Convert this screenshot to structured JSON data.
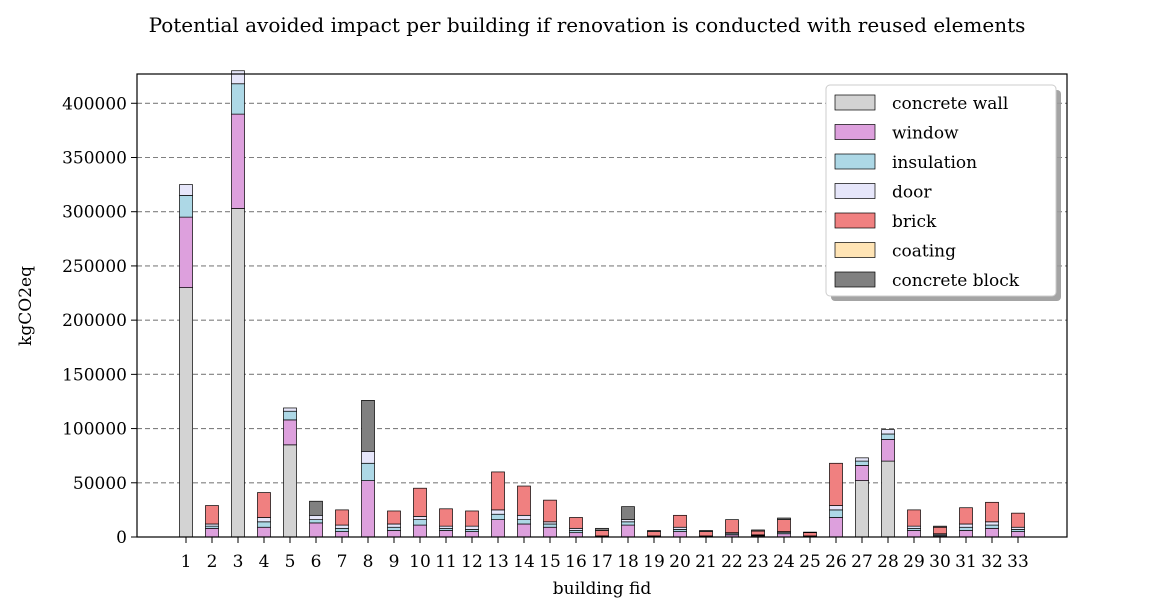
{
  "chart_data": {
    "type": "bar",
    "stacked": true,
    "title": "Potential avoided impact per building if renovation is conducted with reused elements",
    "xlabel": "building fid",
    "ylabel": "kgCO2eq",
    "ylim": [
      0,
      427000
    ],
    "yticks": [
      0,
      50000,
      100000,
      150000,
      200000,
      250000,
      300000,
      350000,
      400000
    ],
    "grid": "y-dashed",
    "legend_position": "top-right",
    "categories": [
      "1",
      "2",
      "3",
      "4",
      "5",
      "6",
      "7",
      "8",
      "9",
      "10",
      "11",
      "12",
      "13",
      "14",
      "15",
      "16",
      "17",
      "18",
      "19",
      "20",
      "21",
      "22",
      "23",
      "24",
      "25",
      "26",
      "27",
      "28",
      "29",
      "30",
      "31",
      "32",
      "33"
    ],
    "series": [
      {
        "name": "concrete wall",
        "color": "#d3d3d3",
        "values": [
          230000,
          0,
          303000,
          0,
          85000,
          0,
          0,
          0,
          0,
          0,
          0,
          0,
          0,
          0,
          0,
          0,
          0,
          0,
          0,
          0,
          0,
          0,
          0,
          0,
          0,
          0,
          52000,
          70000,
          0,
          0,
          0,
          0,
          0
        ]
      },
      {
        "name": "window",
        "color": "#dda0dd",
        "values": [
          65000,
          8000,
          87000,
          9000,
          23000,
          13000,
          5000,
          52000,
          6000,
          11000,
          6000,
          5000,
          16000,
          12000,
          9000,
          4000,
          0,
          11000,
          0,
          5000,
          0,
          2000,
          1000,
          3000,
          0,
          18000,
          14000,
          20000,
          6000,
          1000,
          6000,
          8000,
          5000
        ]
      },
      {
        "name": "insulation",
        "color": "#add8e6",
        "values": [
          20000,
          2000,
          28000,
          5000,
          8000,
          3000,
          3000,
          16000,
          3000,
          5000,
          2000,
          2000,
          5000,
          4000,
          3000,
          2000,
          500,
          3000,
          500,
          2000,
          500,
          1000,
          500,
          1000,
          500,
          7000,
          4000,
          5000,
          2000,
          1000,
          3000,
          3000,
          2000
        ]
      },
      {
        "name": "door",
        "color": "#e6e6fa",
        "values": [
          10000,
          2000,
          12000,
          4000,
          3000,
          4000,
          3000,
          11000,
          3000,
          3000,
          2000,
          3000,
          4000,
          4000,
          2000,
          2000,
          500,
          2000,
          500,
          2000,
          500,
          1000,
          500,
          1000,
          500,
          4000,
          3000,
          4000,
          2000,
          1000,
          3000,
          3000,
          2000
        ]
      },
      {
        "name": "brick",
        "color": "#f08080",
        "values": [
          0,
          17000,
          0,
          23000,
          0,
          0,
          14000,
          0,
          12000,
          26000,
          16000,
          14000,
          35000,
          27000,
          20000,
          10000,
          5000,
          0,
          4000,
          11000,
          4000,
          12000,
          3500,
          11000,
          3000,
          39000,
          0,
          0,
          15000,
          6000,
          15000,
          18000,
          13000
        ]
      },
      {
        "name": "coating",
        "color": "#ffe4b5",
        "values": [
          0,
          0,
          0,
          0,
          0,
          0,
          0,
          0,
          0,
          0,
          0,
          0,
          0,
          0,
          0,
          0,
          0,
          0,
          0,
          0,
          0,
          0,
          0,
          0,
          0,
          0,
          0,
          0,
          0,
          0,
          0,
          0,
          0
        ]
      },
      {
        "name": "concrete block",
        "color": "#808080",
        "values": [
          0,
          0,
          0,
          0,
          0,
          13000,
          0,
          47000,
          0,
          0,
          0,
          0,
          0,
          0,
          0,
          0,
          2000,
          12000,
          1000,
          0,
          1000,
          0,
          1000,
          1500,
          500,
          0,
          0,
          0,
          0,
          1000,
          0,
          0,
          0
        ]
      }
    ]
  }
}
